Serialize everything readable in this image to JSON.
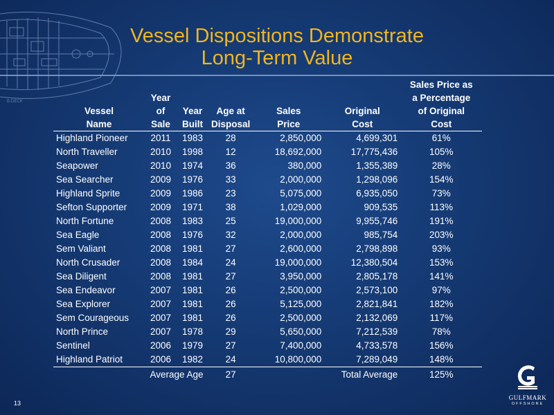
{
  "slide": {
    "title_line1": "Vessel Dispositions Demonstrate",
    "title_line2": "Long-Term Value",
    "page_number": "13",
    "blueprint_label": "B-DECK",
    "logo_name": "GULFMARK",
    "logo_sub": "OFFSHORE"
  },
  "table": {
    "headers": {
      "vessel": [
        "",
        "",
        "Vessel",
        "Name"
      ],
      "sale": [
        "",
        "Year",
        "of",
        "Sale"
      ],
      "built": [
        "",
        "",
        "Year",
        "Built"
      ],
      "age": [
        "",
        "",
        "Age at",
        "Disposal"
      ],
      "price": [
        "",
        "",
        "Sales",
        "Price"
      ],
      "cost": [
        "",
        "",
        "Original",
        "Cost"
      ],
      "pct": [
        "Sales Price as",
        "a Percentage",
        "of Original",
        "Cost"
      ]
    },
    "rows": [
      {
        "name": "Highland Pioneer",
        "sale": "2011",
        "built": "1983",
        "age": "28",
        "price": "2,850,000",
        "cost": "4,699,301",
        "pct": "61%"
      },
      {
        "name": "North Traveller",
        "sale": "2010",
        "built": "1998",
        "age": "12",
        "price": "18,692,000",
        "cost": "17,775,436",
        "pct": "105%"
      },
      {
        "name": "Seapower",
        "sale": "2010",
        "built": "1974",
        "age": "36",
        "price": "380,000",
        "cost": "1,355,389",
        "pct": "28%"
      },
      {
        "name": "Sea Searcher",
        "sale": "2009",
        "built": "1976",
        "age": "33",
        "price": "2,000,000",
        "cost": "1,298,096",
        "pct": "154%"
      },
      {
        "name": "Highland Sprite",
        "sale": "2009",
        "built": "1986",
        "age": "23",
        "price": "5,075,000",
        "cost": "6,935,050",
        "pct": "73%"
      },
      {
        "name": "Sefton Supporter",
        "sale": "2009",
        "built": "1971",
        "age": "38",
        "price": "1,029,000",
        "cost": "909,535",
        "pct": "113%"
      },
      {
        "name": "North Fortune",
        "sale": "2008",
        "built": "1983",
        "age": "25",
        "price": "19,000,000",
        "cost": "9,955,746",
        "pct": "191%"
      },
      {
        "name": "Sea Eagle",
        "sale": "2008",
        "built": "1976",
        "age": "32",
        "price": "2,000,000",
        "cost": "985,754",
        "pct": "203%"
      },
      {
        "name": "Sem Valiant",
        "sale": "2008",
        "built": "1981",
        "age": "27",
        "price": "2,600,000",
        "cost": "2,798,898",
        "pct": "93%"
      },
      {
        "name": "North Crusader",
        "sale": "2008",
        "built": "1984",
        "age": "24",
        "price": "19,000,000",
        "cost": "12,380,504",
        "pct": "153%"
      },
      {
        "name": "Sea Diligent",
        "sale": "2008",
        "built": "1981",
        "age": "27",
        "price": "3,950,000",
        "cost": "2,805,178",
        "pct": "141%"
      },
      {
        "name": "Sea Endeavor",
        "sale": "2007",
        "built": "1981",
        "age": "26",
        "price": "2,500,000",
        "cost": "2,573,100",
        "pct": "97%"
      },
      {
        "name": "Sea Explorer",
        "sale": "2007",
        "built": "1981",
        "age": "26",
        "price": "5,125,000",
        "cost": "2,821,841",
        "pct": "182%"
      },
      {
        "name": "Sem Courageous",
        "sale": "2007",
        "built": "1981",
        "age": "26",
        "price": "2,500,000",
        "cost": "2,132,069",
        "pct": "117%"
      },
      {
        "name": "North Prince",
        "sale": "2007",
        "built": "1978",
        "age": "29",
        "price": "5,650,000",
        "cost": "7,212,539",
        "pct": "78%"
      },
      {
        "name": "Sentinel",
        "sale": "2006",
        "built": "1979",
        "age": "27",
        "price": "7,400,000",
        "cost": "4,733,578",
        "pct": "156%"
      },
      {
        "name": "Highland Patriot",
        "sale": "2006",
        "built": "1982",
        "age": "24",
        "price": "10,800,000",
        "cost": "7,289,049",
        "pct": "148%"
      }
    ],
    "footer": {
      "avg_age_label": "Average Age",
      "avg_age_value": "27",
      "total_avg_label": "Total Average",
      "total_avg_value": "125%"
    }
  }
}
